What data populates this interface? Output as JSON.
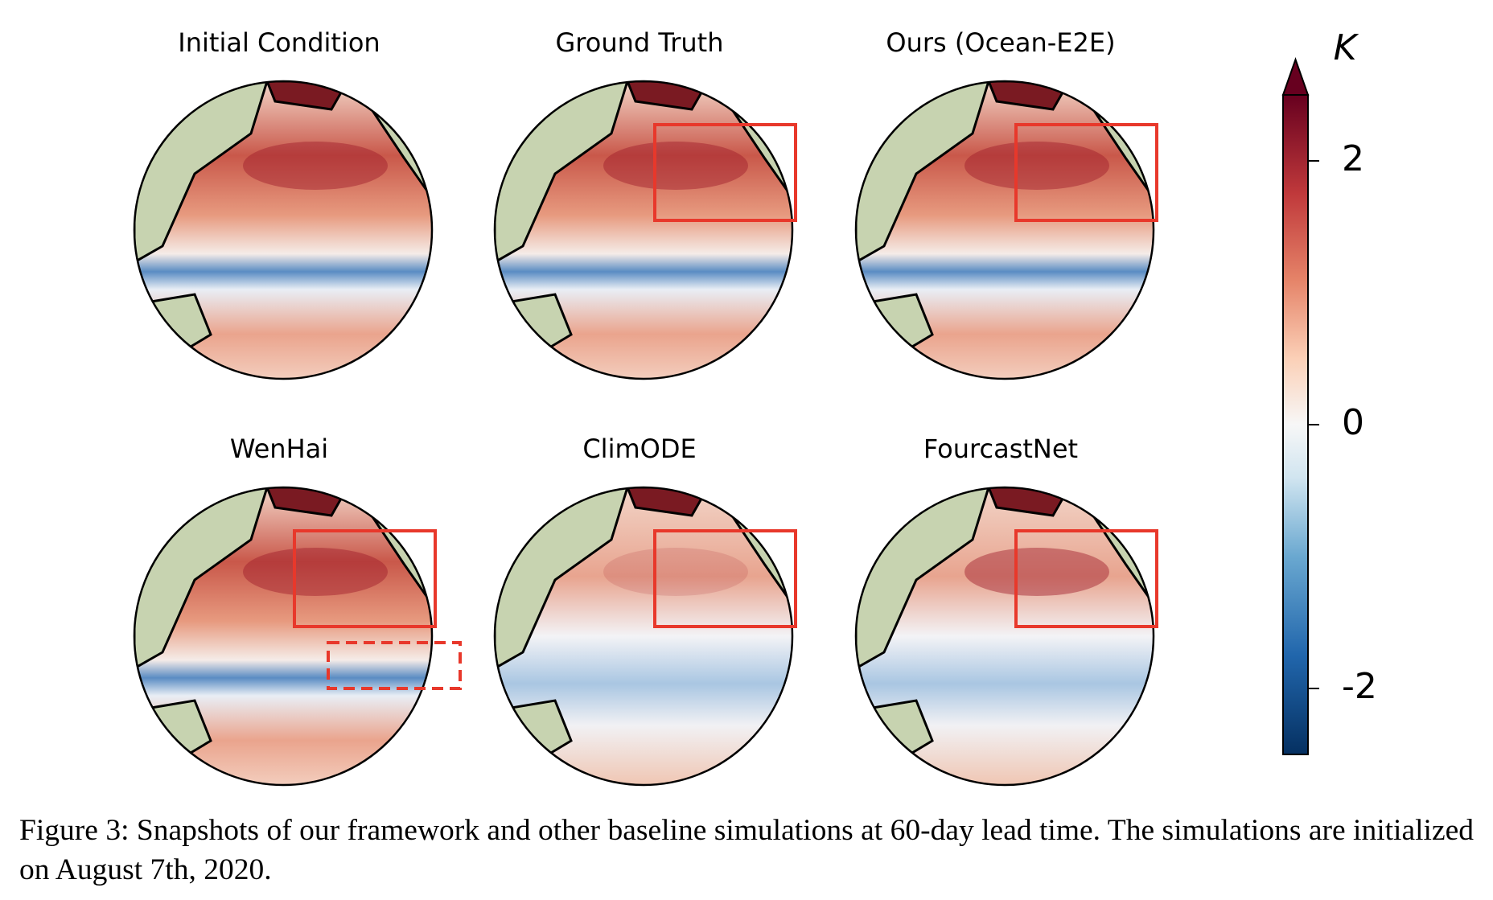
{
  "figure": {
    "panels": [
      {
        "title": "Initial Condition"
      },
      {
        "title": "Ground Truth"
      },
      {
        "title": "Ours (Ocean-E2E)"
      },
      {
        "title": "WenHai"
      },
      {
        "title": "ClimODE"
      },
      {
        "title": "FourcastNet"
      }
    ],
    "colorbar": {
      "label": "K",
      "lim": [
        -2.5,
        2.5
      ],
      "ticks": [
        2,
        0,
        -2
      ]
    },
    "caption": "Figure 3: Snapshots of our framework and other baseline simulations at 60-day lead time. The simulations are initialized on August 7th, 2020."
  }
}
